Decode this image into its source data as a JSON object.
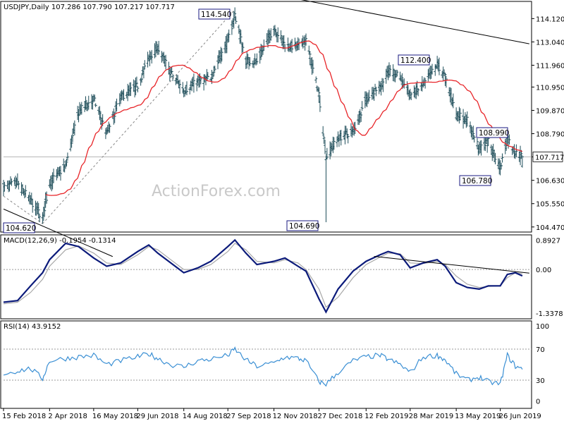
{
  "header": {
    "symbol_line": "USDJPY,Daily  107.286 107.790 107.217 107.717",
    "macd_line": "MACD(12,26,9) -0.1954 -0.1314",
    "rsi_line": "RSI(14) 43.9152"
  },
  "watermark": "ActionForex.com",
  "colors": {
    "candle": "#1f4e5a",
    "ma": "#e8262a",
    "macd": "#0b1a7a",
    "signal": "#a8a8a8",
    "rsi": "#3a8fd4",
    "trend": "#000000",
    "dotted": "#888888"
  },
  "chart_data": [
    {
      "type": "candlestick",
      "title": "USDJPY,Daily",
      "ohlc_last": {
        "open": 107.286,
        "high": 107.79,
        "low": 107.217,
        "close": 107.717
      },
      "price_axis_ticks": [
        114.12,
        113.04,
        111.96,
        110.95,
        109.87,
        108.79,
        107.717,
        106.63,
        105.55,
        104.47
      ],
      "price_axis_labels": [
        "114.120",
        "113.040",
        "111.960",
        "110.950",
        "109.870",
        "108.790",
        "107.717",
        "106.630",
        "105.550",
        "104.470"
      ],
      "ylim": [
        104.3,
        114.85
      ],
      "x_tick_labels": [
        "15 Feb 2018",
        "2 Apr 2018",
        "16 May 2018",
        "29 Jun 2018",
        "14 Aug 2018",
        "27 Sep 2018",
        "12 Nov 2018",
        "27 Dec 2018",
        "12 Feb 2019",
        "28 Mar 2019",
        "13 May 2019",
        "26 Jun 2019"
      ],
      "anchors": [
        {
          "date": "15 Feb 2018",
          "close": 106.3
        },
        {
          "date": "1 Mar 2018",
          "close": 106.5
        },
        {
          "date": "14 Mar 2018",
          "close": 105.7
        },
        {
          "date": "26 Mar 2018",
          "close": 104.9
        },
        {
          "date": "2 Apr 2018",
          "close": 106.5
        },
        {
          "date": "18 Apr 2018",
          "close": 107.3
        },
        {
          "date": "1 May 2018",
          "close": 109.8
        },
        {
          "date": "16 May 2018",
          "close": 110.4
        },
        {
          "date": "29 May 2018",
          "close": 108.8
        },
        {
          "date": "12 Jun 2018",
          "close": 110.5
        },
        {
          "date": "29 Jun 2018",
          "close": 111.0
        },
        {
          "date": "10 Jul 2018",
          "close": 112.3
        },
        {
          "date": "19 Jul 2018",
          "close": 112.8
        },
        {
          "date": "1 Aug 2018",
          "close": 111.6
        },
        {
          "date": "14 Aug 2018",
          "close": 110.8
        },
        {
          "date": "28 Aug 2018",
          "close": 111.2
        },
        {
          "date": "10 Sep 2018",
          "close": 111.4
        },
        {
          "date": "27 Sep 2018",
          "close": 113.1
        },
        {
          "date": "4 Oct 2018",
          "close": 114.3
        },
        {
          "date": "15 Oct 2018",
          "close": 112.2
        },
        {
          "date": "26 Oct 2018",
          "close": 112.1
        },
        {
          "date": "12 Nov 2018",
          "close": 113.7
        },
        {
          "date": "23 Nov 2018",
          "close": 112.9
        },
        {
          "date": "6 Dec 2018",
          "close": 112.8
        },
        {
          "date": "14 Dec 2018",
          "close": 113.1
        },
        {
          "date": "27 Dec 2018",
          "close": 110.6
        },
        {
          "date": "3 Jan 2019",
          "close": 107.7
        },
        {
          "date": "15 Jan 2019",
          "close": 108.6
        },
        {
          "date": "30 Jan 2019",
          "close": 108.9
        },
        {
          "date": "12 Feb 2019",
          "close": 110.4
        },
        {
          "date": "26 Feb 2019",
          "close": 110.9
        },
        {
          "date": "6 Mar 2019",
          "close": 111.7
        },
        {
          "date": "18 Mar 2019",
          "close": 111.4
        },
        {
          "date": "28 Mar 2019",
          "close": 110.6
        },
        {
          "date": "10 Apr 2019",
          "close": 111.0
        },
        {
          "date": "24 Apr 2019",
          "close": 112.0
        },
        {
          "date": "2 May 2019",
          "close": 111.4
        },
        {
          "date": "13 May 2019",
          "close": 109.7
        },
        {
          "date": "24 May 2019",
          "close": 109.4
        },
        {
          "date": "5 Jun 2019",
          "close": 108.1
        },
        {
          "date": "14 Jun 2019",
          "close": 108.4
        },
        {
          "date": "26 Jun 2019",
          "close": 107.2
        },
        {
          "date": "3 Jul 2019",
          "close": 108.6
        },
        {
          "date": "11 Jul 2019",
          "close": 107.9
        },
        {
          "date": "18 Jul 2019",
          "close": 107.717
        }
      ],
      "spikes": [
        {
          "date": "3 Jan 2019",
          "low": 104.69
        },
        {
          "date": "26 Mar 2018",
          "low": 104.62
        }
      ],
      "annotations": [
        {
          "label": "114.540",
          "date": "4 Oct 2018",
          "price": 114.54
        },
        {
          "label": "112.400",
          "date": "24 Apr 2019",
          "price": 112.4
        },
        {
          "label": "108.990",
          "date": "11 Jul 2019",
          "price": 108.99
        },
        {
          "label": "106.780",
          "date": "26 Jun 2019",
          "price": 106.78
        },
        {
          "label": "104.690",
          "date": "3 Jan 2019",
          "price": 104.69
        },
        {
          "label": "104.620",
          "date": "26 Mar 2018",
          "price": 104.62
        }
      ],
      "trendlines": [
        {
          "style": "solid",
          "from": {
            "date": "28 Jul 2018",
            "price": 116.2
          },
          "to": {
            "date": "25 Jul 2019",
            "price": 112.95
          }
        },
        {
          "style": "solid",
          "from": {
            "date": "15 Feb 2018",
            "price": 105.3
          },
          "to": {
            "date": "4 Jun 2018",
            "price": 103.1
          }
        },
        {
          "style": "dashed",
          "from": {
            "date": "15 Feb 2018",
            "price": 105.9
          },
          "to": {
            "date": "26 Mar 2018",
            "price": 104.62
          }
        },
        {
          "style": "dashed",
          "from": {
            "date": "26 Mar 2018",
            "price": 104.62
          },
          "to": {
            "date": "4 Oct 2018",
            "price": 114.54
          }
        }
      ],
      "current_price_line": 107.717
    },
    {
      "type": "line",
      "title": "MACD(12,26,9)",
      "axis_labels": [
        "0.8927",
        "0.00",
        "-1.3378"
      ],
      "ylim": [
        -1.42,
        0.95
      ],
      "zero_line": 0,
      "macd": [
        -1.0,
        -0.95,
        -0.5,
        -0.1,
        0.3,
        0.8,
        0.7,
        0.35,
        0.1,
        0.2,
        0.55,
        0.75,
        0.5,
        0.2,
        -0.1,
        0.05,
        0.25,
        0.7,
        0.9,
        0.5,
        0.15,
        0.25,
        0.35,
        0.1,
        -0.05,
        -0.9,
        -1.3,
        -0.6,
        -0.05,
        0.25,
        0.45,
        0.55,
        0.45,
        0.05,
        0.2,
        0.3,
        0.1,
        -0.4,
        -0.55,
        -0.6,
        -0.5,
        -0.5,
        -0.15,
        -0.1,
        -0.195
      ],
      "signal": [
        -1.05,
        -1.0,
        -0.7,
        -0.3,
        0.1,
        0.6,
        0.72,
        0.5,
        0.2,
        0.15,
        0.45,
        0.7,
        0.6,
        0.3,
        0.0,
        0.0,
        0.15,
        0.55,
        0.8,
        0.6,
        0.25,
        0.2,
        0.3,
        0.2,
        0.0,
        -0.6,
        -1.15,
        -0.85,
        -0.25,
        0.15,
        0.38,
        0.5,
        0.48,
        0.2,
        0.18,
        0.25,
        0.15,
        -0.2,
        -0.45,
        -0.55,
        -0.52,
        -0.5,
        -0.25,
        -0.1,
        -0.131
      ],
      "trendline": {
        "from": {
          "date": "20 Feb 2019",
          "value": 0.4
        },
        "to": {
          "date": "25 Jul 2019",
          "value": -0.11
        }
      }
    },
    {
      "type": "line",
      "title": "RSI(14)",
      "axis_labels": [
        "100",
        "70",
        "30",
        "0"
      ],
      "ylim": [
        0,
        100
      ],
      "levels": [
        70,
        30
      ],
      "rsi": [
        38,
        42,
        45,
        32,
        55,
        58,
        60,
        62,
        50,
        55,
        60,
        64,
        58,
        50,
        47,
        55,
        57,
        62,
        70,
        56,
        48,
        52,
        60,
        58,
        55,
        28,
        25,
        40,
        55,
        60,
        62,
        57,
        50,
        40,
        60,
        62,
        56,
        38,
        30,
        34,
        28,
        25,
        62,
        48,
        43.9152
      ]
    }
  ]
}
